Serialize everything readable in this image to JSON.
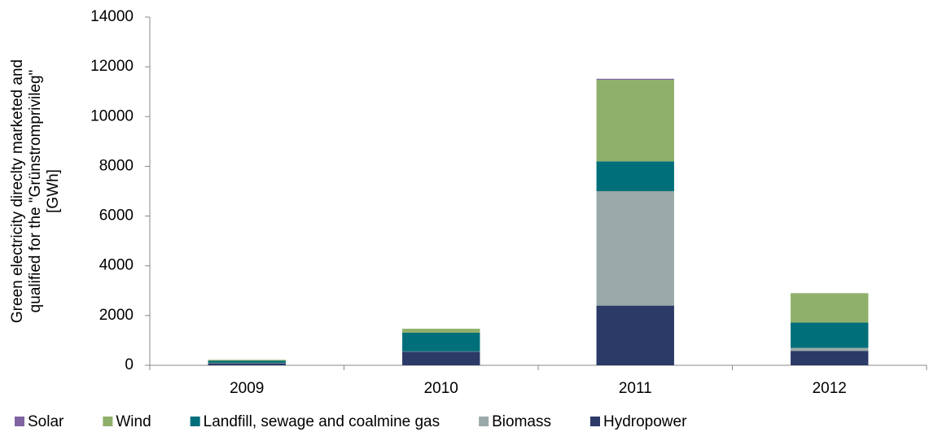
{
  "chart_data": {
    "type": "stacked-bar",
    "ylabel": [
      "Green electricity direclty marketed and",
      "qualified for the \"Grünstromprivileg\"",
      "[GWh]"
    ],
    "categories": [
      "2009",
      "2010",
      "2011",
      "2012"
    ],
    "series": [
      {
        "name": "Hydropower",
        "color": "#2b3a67",
        "values": [
          80,
          550,
          2400,
          580
        ]
      },
      {
        "name": "Biomass",
        "color": "#9aaaa8",
        "values": [
          20,
          10,
          4600,
          120
        ]
      },
      {
        "name": "Landfill, sewage and coalmine gas",
        "color": "#006f7a",
        "values": [
          80,
          750,
          1200,
          1020
        ]
      },
      {
        "name": "Wind",
        "color": "#8fb06a",
        "values": [
          40,
          160,
          3280,
          1180
        ]
      },
      {
        "name": "Solar",
        "color": "#8064a2",
        "values": [
          0,
          0,
          40,
          0
        ]
      }
    ],
    "ylim": [
      0,
      14000
    ],
    "yticks": [
      0,
      2000,
      4000,
      6000,
      8000,
      10000,
      12000,
      14000
    ],
    "grid": false,
    "legend": "bottom"
  }
}
